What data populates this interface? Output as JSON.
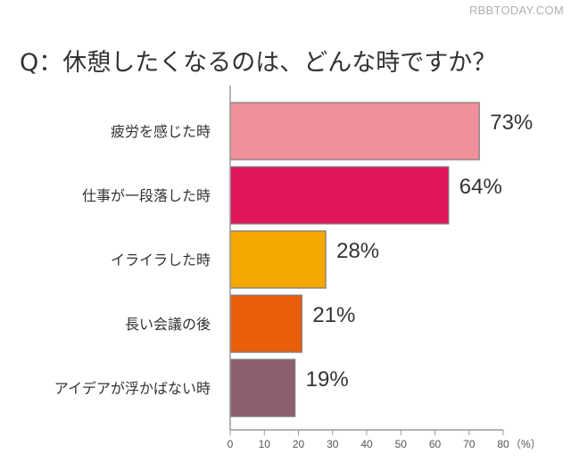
{
  "watermark": "RBBTODAY.COM",
  "chart_data": {
    "type": "bar",
    "orientation": "horizontal",
    "title": "Q：休憩したくなるのは、どんな時ですか？",
    "categories": [
      "疲労を感じた時",
      "仕事が一段落した時",
      "イライラした時",
      "長い会議の後",
      "アイデアが浮かばない時"
    ],
    "values": [
      73,
      64,
      28,
      21,
      19
    ],
    "value_labels": [
      "73%",
      "64%",
      "28%",
      "21%",
      "19%"
    ],
    "bar_colors": [
      "#f0909a",
      "#e0175a",
      "#f5a800",
      "#e85e0a",
      "#8c6070"
    ],
    "xlim": [
      0,
      80
    ],
    "xticks": [
      0,
      10,
      20,
      30,
      40,
      50,
      60,
      70,
      80
    ],
    "xunit": "（%）",
    "grid": false,
    "legend": "none"
  }
}
